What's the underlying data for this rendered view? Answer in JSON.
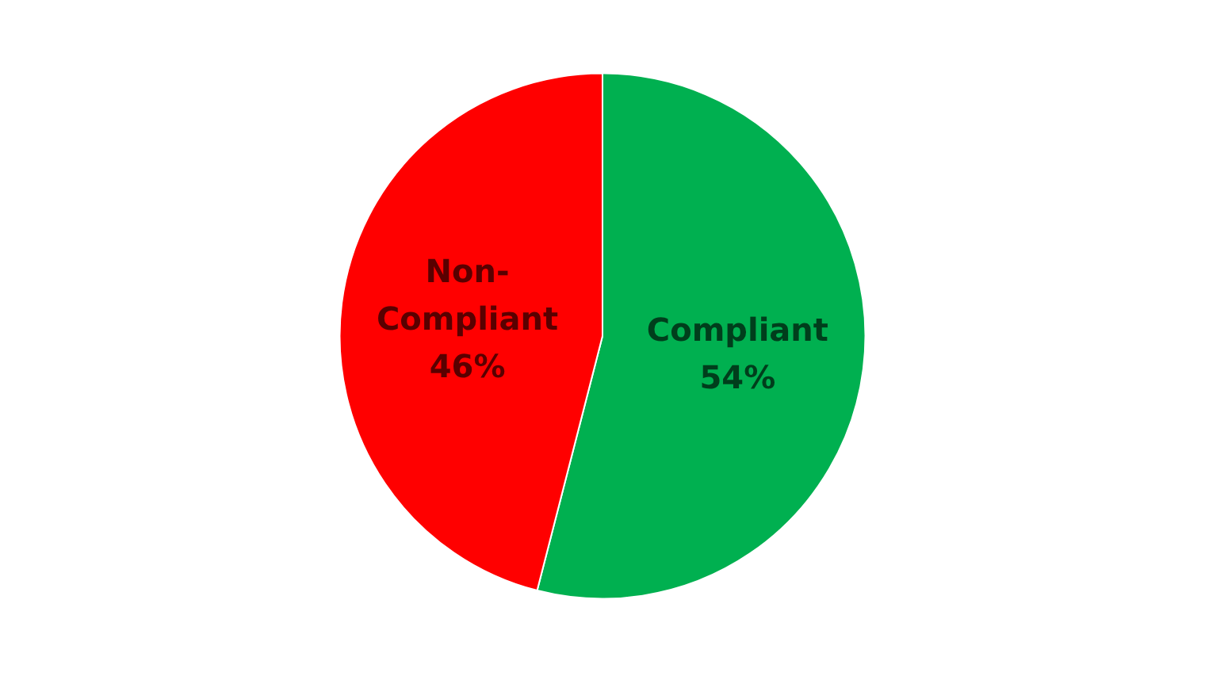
{
  "chart_data": {
    "type": "pie",
    "categories": [
      "Compliant",
      "Non-Compliant"
    ],
    "values": [
      54,
      46
    ],
    "colors": [
      "#00b050",
      "#ff0000"
    ],
    "value_labels": [
      "54%",
      "46%"
    ]
  }
}
